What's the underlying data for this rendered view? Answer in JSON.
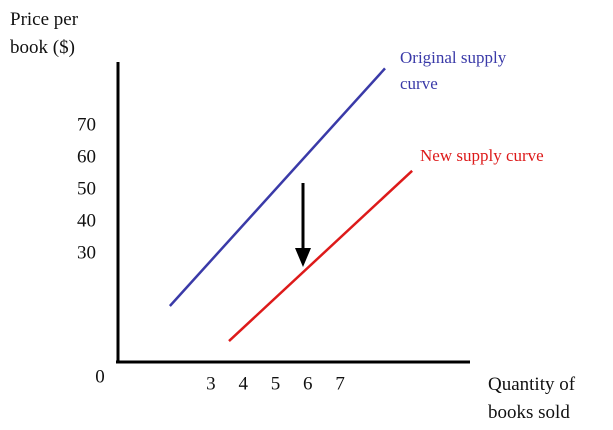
{
  "chart_data": {
    "type": "line",
    "y_label": "Price per book ($)",
    "x_label": "Quantity of books sold",
    "origin_label": "0",
    "xlim": [
      0,
      11
    ],
    "ylim": [
      -4,
      90
    ],
    "xticks": [
      3,
      4,
      5,
      6,
      7
    ],
    "yticks": [
      30,
      40,
      50,
      60,
      70
    ],
    "grid": false,
    "series": [
      {
        "name": "Original supply curve",
        "color": "#3a3aa8",
        "x": [
          1.73,
          8.39
        ],
        "values": [
          13.75,
          88
        ]
      },
      {
        "name": "New supply curve",
        "color": "#dd1a1a",
        "x": [
          3.56,
          9.23
        ],
        "values": [
          2.8,
          56
        ]
      }
    ]
  }
}
